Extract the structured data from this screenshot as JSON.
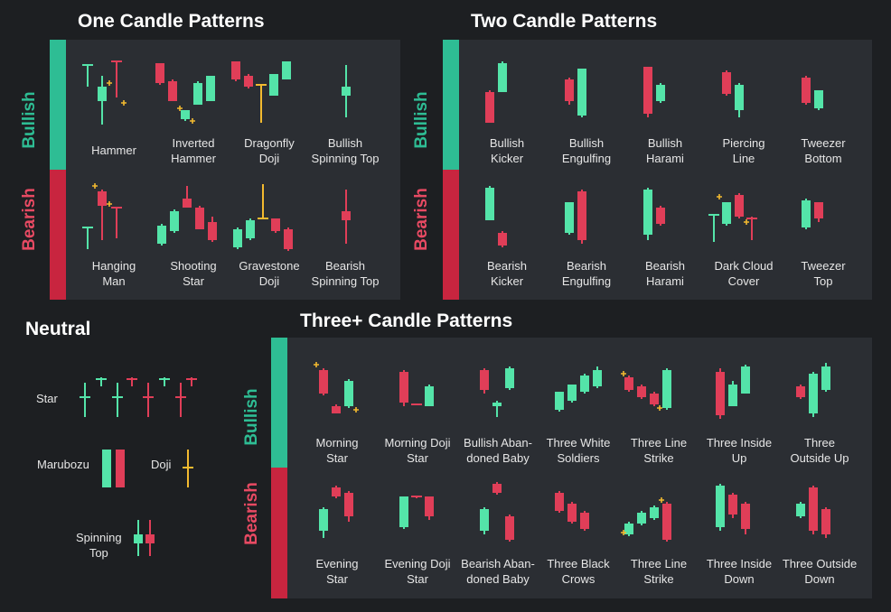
{
  "colors": {
    "bull": "#2ebd94",
    "bear": "#c8253f",
    "bull_candle": "#54e4a9",
    "bear_candle": "#e03e58",
    "spark": "#f3ba2f"
  },
  "panels": [
    {
      "id": "one-candle",
      "title": "One Candle Patterns",
      "rows": [
        {
          "label": "Bullish",
          "items": [
            {
              "name": [
                "Hammer"
              ],
              "candles": [
                {
                  "open": 60,
                  "close": 60,
                  "high": 79,
                  "low": 57,
                  "bull": false,
                  "w": 0
                },
                {
                  "open": 60,
                  "close": 67,
                  "high": 72,
                  "low": 38,
                  "bull": false
                },
                {
                  "open": 67,
                  "close": 70,
                  "high": 72,
                  "low": 47,
                  "bull": true
                },
                {
                  "open": 78,
                  "close": 80,
                  "high": 92,
                  "low": 68,
                  "bull": true
                }
              ]
            },
            {
              "name": [
                "Inverted",
                "Hammer"
              ],
              "candles": []
            },
            {
              "name": [
                "Dragonfly",
                "Doji"
              ],
              "candles": []
            },
            {
              "name": [
                "Bullish",
                "Spinning Top"
              ],
              "candles": []
            }
          ]
        },
        {
          "label": "Bearish",
          "items": [
            {
              "name": [
                "Hanging",
                "Man"
              ],
              "candles": []
            },
            {
              "name": [
                "Shooting",
                "Star"
              ],
              "candles": []
            },
            {
              "name": [
                "Gravestone",
                "Doji"
              ],
              "candles": []
            },
            {
              "name": [
                "Bearish",
                "Spinning Top"
              ],
              "candles": []
            }
          ]
        }
      ]
    },
    {
      "id": "two-candle",
      "title": "Two Candle Patterns",
      "rows": [
        {
          "label": "Bullish",
          "items": [
            {
              "name": [
                "Bullish",
                "Kicker"
              ]
            },
            {
              "name": [
                "Bullish",
                "Engulfing"
              ]
            },
            {
              "name": [
                "Bullish",
                "Harami"
              ]
            },
            {
              "name": [
                "Piercing",
                "Line"
              ]
            },
            {
              "name": [
                "Tweezer",
                "Bottom"
              ]
            }
          ]
        },
        {
          "label": "Bearish",
          "items": [
            {
              "name": [
                "Bearish",
                "Kicker"
              ]
            },
            {
              "name": [
                "Bearish",
                "Engulfing"
              ]
            },
            {
              "name": [
                "Bearish",
                "Harami"
              ]
            },
            {
              "name": [
                "Dark Cloud",
                "Cover"
              ]
            },
            {
              "name": [
                "Tweezer",
                "Top"
              ]
            }
          ]
        }
      ]
    },
    {
      "id": "three-candle",
      "title": "Three+ Candle Patterns",
      "rows": [
        {
          "label": "Bullish",
          "items": [
            {
              "name": [
                "Morning",
                "Star"
              ]
            },
            {
              "name": [
                "Morning Doji",
                "Star"
              ]
            },
            {
              "name": [
                "Bullish Aban-",
                "doned Baby"
              ]
            },
            {
              "name": [
                "Three White",
                "Soldiers"
              ]
            },
            {
              "name": [
                "Three Line",
                "Strike"
              ]
            },
            {
              "name": [
                "Three Inside",
                "Up"
              ]
            },
            {
              "name": [
                "Three",
                "Outside Up"
              ]
            }
          ]
        },
        {
          "label": "Bearish",
          "items": [
            {
              "name": [
                "Evening",
                "Star"
              ]
            },
            {
              "name": [
                "Evening Doji",
                "Star"
              ]
            },
            {
              "name": [
                "Bearish Aban-",
                "doned Baby"
              ]
            },
            {
              "name": [
                "Three Black",
                "Crows"
              ]
            },
            {
              "name": [
                "Three Line",
                "Strike"
              ]
            },
            {
              "name": [
                "Three Inside",
                "Down"
              ]
            },
            {
              "name": [
                "Three Outside",
                "Down"
              ]
            }
          ]
        }
      ]
    }
  ],
  "neutral": {
    "title": "Neutral",
    "items": [
      {
        "name": "Star"
      },
      {
        "name": "Marubozu"
      },
      {
        "name": "Doji"
      },
      {
        "name": "Spinning Top",
        "lines": [
          "Spinning",
          "Top"
        ]
      }
    ]
  }
}
